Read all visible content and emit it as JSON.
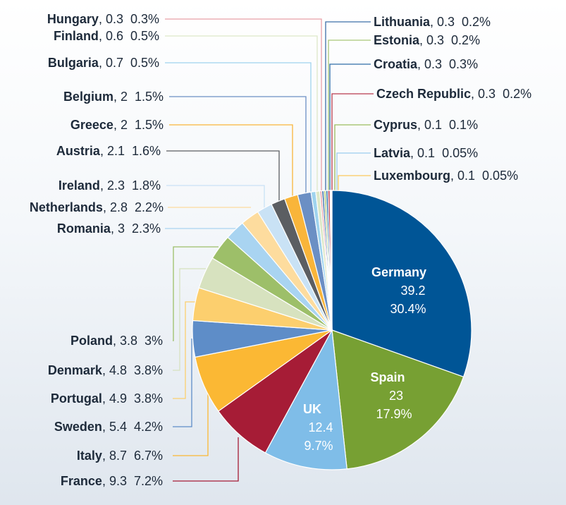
{
  "chart_data": {
    "type": "pie",
    "title": "",
    "slices": [
      {
        "name": "Germany",
        "value": 39.2,
        "pct": "30.4%",
        "color": "#005596"
      },
      {
        "name": "Spain",
        "value": 23,
        "pct": "17.9%",
        "color": "#77A033"
      },
      {
        "name": "UK",
        "value": 12.4,
        "pct": "9.7%",
        "color": "#7FBDE8"
      },
      {
        "name": "France",
        "value": 9.3,
        "pct": "7.2%",
        "color": "#A61C36"
      },
      {
        "name": "Italy",
        "value": 8.7,
        "pct": "6.7%",
        "color": "#FBB834"
      },
      {
        "name": "Sweden",
        "value": 5.4,
        "pct": "4.2%",
        "color": "#5E8DC8"
      },
      {
        "name": "Portugal",
        "value": 4.9,
        "pct": "3.8%",
        "color": "#FCCF6E"
      },
      {
        "name": "Denmark",
        "value": 4.8,
        "pct": "3.8%",
        "color": "#D7E2BF"
      },
      {
        "name": "Poland",
        "value": 3.8,
        "pct": "3%",
        "color": "#9DBF69"
      },
      {
        "name": "Romania",
        "value": 3,
        "pct": "2.3%",
        "color": "#A9D4F1"
      },
      {
        "name": "Netherlands",
        "value": 2.8,
        "pct": "2.2%",
        "color": "#FDDC9E"
      },
      {
        "name": "Ireland",
        "value": 2.3,
        "pct": "1.8%",
        "color": "#C9E2F5"
      },
      {
        "name": "Austria",
        "value": 2.1,
        "pct": "1.6%",
        "color": "#5B5E62"
      },
      {
        "name": "Greece",
        "value": 2,
        "pct": "1.5%",
        "color": "#F9B53A"
      },
      {
        "name": "Belgium",
        "value": 2,
        "pct": "1.5%",
        "color": "#6B8FC4"
      },
      {
        "name": "Bulgaria",
        "value": 0.7,
        "pct": "0.5%",
        "color": "#9FD3EE"
      },
      {
        "name": "Finland",
        "value": 0.6,
        "pct": "0.5%",
        "color": "#DDE8C8"
      },
      {
        "name": "Hungary",
        "value": 0.3,
        "pct": "0.3%",
        "color": "#E8A0A8"
      },
      {
        "name": "Lithuania",
        "value": 0.3,
        "pct": "0.2%",
        "color": "#3D6FA8"
      },
      {
        "name": "Estonia",
        "value": 0.3,
        "pct": "0.2%",
        "color": "#A8C878"
      },
      {
        "name": "Croatia",
        "value": 0.3,
        "pct": "0.3%",
        "color": "#2F6EA8"
      },
      {
        "name": "Czech Republic",
        "value": 0.3,
        "pct": "0.2%",
        "color": "#B83A4E"
      },
      {
        "name": "Cyprus",
        "value": 0.1,
        "pct": "0.1%",
        "color": "#9ABD5E"
      },
      {
        "name": "Latvia",
        "value": 0.1,
        "pct": "0.05%",
        "color": "#9CCDEF"
      },
      {
        "name": "Luxembourg",
        "value": 0.1,
        "pct": "0.05%",
        "color": "#FCC95C"
      }
    ]
  }
}
